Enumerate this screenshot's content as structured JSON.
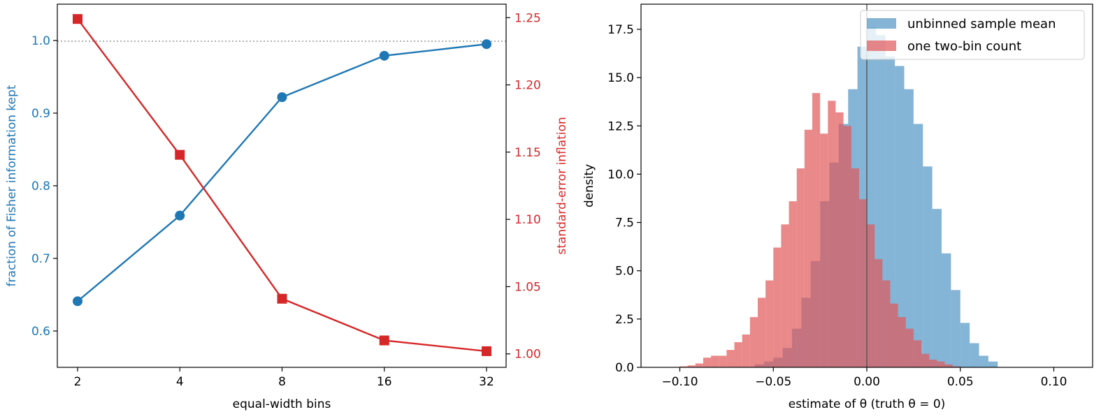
{
  "colors": {
    "fisher": "#1f77b4",
    "se": "#d62728",
    "hist_unbinned": "#1f77b4",
    "hist_twobin": "#e15759",
    "frame": "#000000",
    "ref_line": "#808080",
    "truth_line": "#555555"
  },
  "chart_data": [
    {
      "type": "line",
      "xscale": "log2",
      "x": [
        2,
        4,
        8,
        16,
        32
      ],
      "xticks": [
        "2",
        "4",
        "8",
        "16",
        "32"
      ],
      "xlabel": "equal-width bins",
      "ylabel_left": "fraction of Fisher information kept",
      "ylabel_right": "standard-error inflation",
      "ylim_left": [
        0.55,
        1.05
      ],
      "ylim_right": [
        0.99,
        1.26
      ],
      "yticks_left": [
        "0.6",
        "0.7",
        "0.8",
        "0.9",
        "1.0"
      ],
      "yticks_right": [
        "1.00",
        "1.05",
        "1.10",
        "1.15",
        "1.20",
        "1.25"
      ],
      "reference_line_left": 1.0,
      "grid": false,
      "series": [
        {
          "axis": "left",
          "marker": "circle",
          "values": [
            0.641,
            0.759,
            0.922,
            0.979,
            0.995
          ]
        },
        {
          "axis": "right",
          "marker": "square",
          "values": [
            1.249,
            1.148,
            1.041,
            1.01,
            1.002
          ]
        }
      ]
    },
    {
      "type": "histogram",
      "xlabel": "estimate of θ (truth θ = 0)",
      "ylabel": "density",
      "xlim": [
        -0.12,
        0.12
      ],
      "ylim": [
        0,
        18.8
      ],
      "xticks": [
        "−0.10",
        "−0.05",
        "0.00",
        "0.05",
        "0.10"
      ],
      "yticks": [
        "0.0",
        "2.5",
        "5.0",
        "7.5",
        "10.0",
        "12.5",
        "15.0",
        "17.5"
      ],
      "truth_line_x": 0,
      "legend": {
        "position": "top-right",
        "entries": [
          "unbinned sample mean",
          "one two-bin count"
        ]
      },
      "series": [
        {
          "name": "unbinned sample mean",
          "bin_start": -0.06,
          "bin_width": 0.005,
          "values": [
            0.15,
            0.3,
            0.5,
            1.0,
            2.0,
            3.6,
            5.5,
            8.6,
            10.6,
            12.6,
            14.4,
            16.6,
            17.6,
            17.2,
            16.1,
            15.6,
            14.4,
            12.6,
            10.4,
            8.2,
            5.9,
            4.0,
            2.3,
            1.25,
            0.6,
            0.3
          ]
        },
        {
          "name": "one two-bin count",
          "bin_start": -0.1,
          "bin_width": 0.004167,
          "values": [
            0.05,
            0.1,
            0.2,
            0.5,
            0.6,
            0.6,
            0.9,
            1.3,
            1.7,
            2.6,
            3.6,
            4.5,
            6.2,
            7.4,
            8.6,
            10.3,
            12.3,
            14.2,
            12.1,
            13.8,
            13.2,
            12.5,
            10.3,
            8.7,
            7.4,
            5.6,
            4.5,
            3.3,
            2.6,
            2.0,
            1.4,
            0.7,
            0.4,
            0.3,
            0.15,
            0.05
          ]
        }
      ]
    }
  ]
}
